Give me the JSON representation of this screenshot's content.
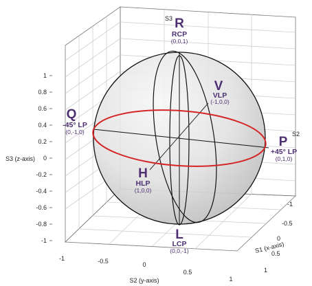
{
  "axes": {
    "top_label": "S3",
    "right_label": "S2",
    "z_label": "S3 (z-axis)",
    "y_label": "S2 (y-axis)",
    "x_label": "S1 (x-axis)",
    "z_ticks": [
      "1",
      "0.8",
      "0.6",
      "0.4",
      "0.2",
      "0",
      "-0.2",
      "-0.4",
      "-0.6",
      "-0.8",
      "-1"
    ],
    "y_ticks": [
      "-1",
      "-0.5",
      "0",
      "0.5",
      "1"
    ],
    "x_ticks": [
      "-1",
      "-0.5",
      "0",
      "0.5",
      "1"
    ]
  },
  "points": {
    "R": {
      "letter": "R",
      "name": "RCP",
      "coords": "(0,0,1)"
    },
    "V": {
      "letter": "V",
      "name": "VLP",
      "coords": "(-1,0,0)"
    },
    "Q": {
      "letter": "Q",
      "name": "-45° LP",
      "coords": "(0,-1,0)"
    },
    "P": {
      "letter": "P",
      "name": "+45° LP",
      "coords": "(0,1,0)"
    },
    "H": {
      "letter": "H",
      "name": "HLP",
      "coords": "(1,0,0)"
    },
    "L": {
      "letter": "L",
      "name": "LCP",
      "coords": "(0,0,-1)"
    }
  },
  "colors": {
    "sphere_light": "#f4f4f4",
    "sphere_dark": "#bcbcbc",
    "equator": "#d42424",
    "meridian": "#111111",
    "label": "#4d2f72"
  }
}
